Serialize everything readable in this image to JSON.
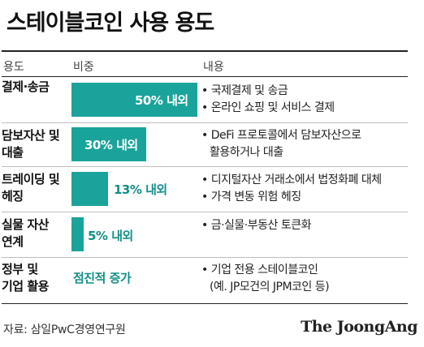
{
  "title": "스테이블코인 사용 용도",
  "columns": {
    "use": "용도",
    "share": "비중",
    "content": "내용"
  },
  "rows": [
    {
      "use_line1": "결제·송금",
      "use_line2": "",
      "share_label": "50% 내외",
      "share_value": 50,
      "details": [
        "• 국제결제 및 송금",
        "• 온라인 쇼핑 및 서비스 결제"
      ]
    },
    {
      "use_line1": "담보자산 및",
      "use_line2": "대출",
      "share_label": "30% 내외",
      "share_value": 30,
      "details": [
        "• DeFi 프로토콜에서 담보자산으로",
        "활용하거나 대출"
      ]
    },
    {
      "use_line1": "트레이딩 및",
      "use_line2": "헤징",
      "share_label": "13% 내외",
      "share_value": 13,
      "details": [
        "• 디지털자산 거래소에서 법정화폐 대체",
        "• 가격 변동 위험 헤징"
      ]
    },
    {
      "use_line1": "실물 자산",
      "use_line2": "연계",
      "share_label": "5% 내외",
      "share_value": 5,
      "details": [
        "• 금·실물·부동산 토큰화",
        ""
      ]
    },
    {
      "use_line1": "정부 및",
      "use_line2": "기업 활용",
      "share_label": "점진적 증가",
      "share_value": null,
      "details": [
        "• 기업 전용 스테이블코인",
        "(예. JP모건의 JPM코인 등)"
      ]
    }
  ],
  "source": "자료: 삼일PwC경영연구원",
  "logo_text": "The JoongAng",
  "colors": {
    "bar": "#1aa39a",
    "accent_text": "#138f87"
  }
}
